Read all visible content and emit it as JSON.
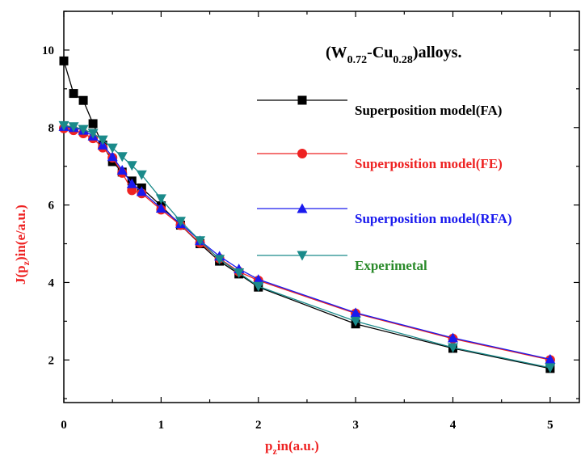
{
  "chart_data": {
    "type": "line",
    "title": "",
    "annotation": {
      "prefix": "(W",
      "sub1": "0.72",
      "mid": "-Cu",
      "sub2": "0.28",
      "suffix": ")alloys."
    },
    "xlabel": {
      "main1": "p",
      "sub": "z",
      "main2": "in(a.u.)"
    },
    "ylabel": {
      "main1": "J(p",
      "sub": "z",
      "main2": ")in(e/a.u.)"
    },
    "xlim": [
      0,
      5.3
    ],
    "ylim": [
      0.9,
      11
    ],
    "xticks": [
      0,
      1,
      2,
      3,
      4,
      5
    ],
    "yticks": [
      2,
      4,
      6,
      8,
      10
    ],
    "x": [
      0,
      0.1,
      0.2,
      0.3,
      0.4,
      0.5,
      0.6,
      0.7,
      0.8,
      1.0,
      1.2,
      1.4,
      1.6,
      1.8,
      2.0,
      3.0,
      4.0,
      5.0
    ],
    "series": [
      {
        "name": "Superposition model(FA)",
        "color": "#000000",
        "label_color": "#000000",
        "marker": "square",
        "values": [
          9.72,
          8.88,
          8.7,
          8.1,
          7.55,
          7.12,
          6.85,
          6.62,
          6.44,
          5.98,
          5.48,
          5.0,
          4.55,
          4.22,
          3.88,
          2.93,
          2.3,
          1.78
        ]
      },
      {
        "name": "Superposition model(FE)",
        "color": "#ee2222",
        "label_color": "#ee2222",
        "marker": "circle",
        "values": [
          7.98,
          7.93,
          7.85,
          7.72,
          7.48,
          7.22,
          6.83,
          6.38,
          6.3,
          5.88,
          5.48,
          5.02,
          4.62,
          4.28,
          4.05,
          3.2,
          2.55,
          2.0
        ]
      },
      {
        "name": "Superposition model(RFA)",
        "color": "#1a1aee",
        "label_color": "#1a1aee",
        "marker": "triangle-up",
        "values": [
          8.03,
          8.0,
          7.93,
          7.78,
          7.55,
          7.25,
          6.9,
          6.55,
          6.35,
          5.92,
          5.52,
          5.08,
          4.68,
          4.35,
          4.08,
          3.22,
          2.57,
          2.02
        ]
      },
      {
        "name": "Experimetal",
        "color": "#1a8a8a",
        "label_color": "#2a8a2a",
        "marker": "triangle-down",
        "values": [
          8.05,
          8.02,
          7.95,
          7.85,
          7.68,
          7.47,
          7.25,
          7.02,
          6.78,
          6.16,
          5.58,
          5.08,
          4.6,
          4.25,
          3.9,
          3.0,
          2.32,
          1.8
        ]
      }
    ],
    "legend_position": "right"
  }
}
